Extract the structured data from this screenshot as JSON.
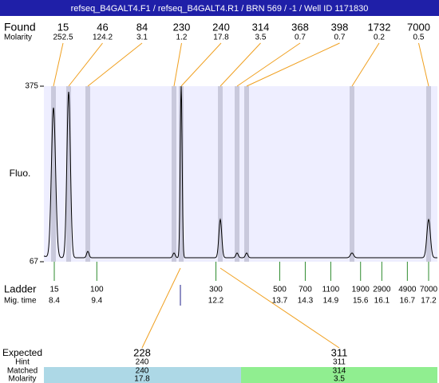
{
  "title": "refseq_B4GALT4.F1 / refseq_B4GALT4.R1 / BRN 569 / -1 / Well ID 1171830",
  "found": {
    "label": "Found",
    "molarity_label": "Molarity",
    "sizes": [
      15,
      46,
      84,
      230,
      240,
      314,
      368,
      398,
      1732,
      7000
    ],
    "molarity": [
      252.5,
      124.2,
      3.1,
      1.2,
      17.8,
      3.5,
      0.7,
      0.7,
      0.2,
      0.5
    ]
  },
  "y_axis": {
    "label": "Fluo.",
    "ylim": [
      67,
      375
    ],
    "yticks": [
      67,
      375
    ]
  },
  "ladder": {
    "label": "Ladder",
    "mig_label": "Mig. time",
    "sizes": [
      15,
      100,
      300,
      500,
      700,
      1100,
      1900,
      2900,
      4900,
      7000
    ],
    "mig_times": [
      8.4,
      9.4,
      12.2,
      13.7,
      14.3,
      14.9,
      15.6,
      16.1,
      16.7,
      17.2
    ]
  },
  "expected": {
    "label": "Expected",
    "hint_label": "Hint",
    "matched_label": "Matched",
    "molarity_label": "Molarity",
    "peaks": [
      {
        "expected": 228,
        "hint": 240,
        "matched": 240,
        "molarity": 17.8
      },
      {
        "expected": 311,
        "hint": 311,
        "matched": 314,
        "molarity": 3.5
      }
    ]
  }
}
